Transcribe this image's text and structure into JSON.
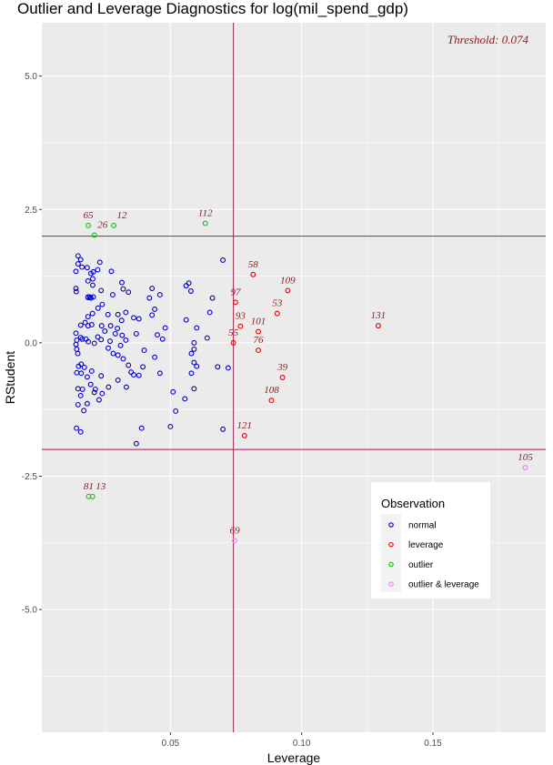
{
  "chart_data": {
    "type": "scatter",
    "title": "Outlier and Leverage Diagnostics for log(mil_spend_gdp)",
    "xlabel": "Leverage",
    "ylabel": "RStudent",
    "xlim": [
      0.001,
      0.193
    ],
    "ylim": [
      -7.3,
      6.0
    ],
    "x_ticks": [
      0.05,
      0.1,
      0.15
    ],
    "x_tick_labels": [
      "0.05",
      "0.10",
      "0.15"
    ],
    "y_ticks": [
      5.0,
      2.5,
      0.0,
      -2.5,
      -5.0
    ],
    "y_tick_labels": [
      "5.0",
      "2.5",
      "0.0",
      "-2.5",
      "-5.0"
    ],
    "grid": true,
    "threshold_leverage": 0.074,
    "threshold_label": "Threshold: 0.074",
    "rstudent_cutoffs": [
      2,
      -2
    ],
    "colors": {
      "normal": "#0000cc",
      "leverage": "#e00000",
      "outlier": "#00cc00",
      "outlier & leverage": "#ee82ee",
      "reference_line": "#a0204a",
      "label": "#8b1a1a",
      "panel": "#ebebeb",
      "grid": "#ffffff"
    },
    "legend": {
      "title": "Observation",
      "position": "bottom-right",
      "entries": [
        "normal",
        "leverage",
        "outlier",
        "outlier & leverage"
      ]
    },
    "series": [
      {
        "name": "normal",
        "points": [
          [
            0.0148,
            1.63
          ],
          [
            0.0158,
            1.56
          ],
          [
            0.0148,
            1.48
          ],
          [
            0.0163,
            1.42
          ],
          [
            0.014,
            1.34
          ],
          [
            0.0183,
            1.41
          ],
          [
            0.0197,
            1.3
          ],
          [
            0.0206,
            1.33
          ],
          [
            0.0231,
            1.51
          ],
          [
            0.0223,
            1.37
          ],
          [
            0.0275,
            1.34
          ],
          [
            0.028,
            0.9
          ],
          [
            0.0236,
            0.98
          ],
          [
            0.0204,
            1.2
          ],
          [
            0.0186,
            1.16
          ],
          [
            0.0204,
            1.08
          ],
          [
            0.0186,
            0.86
          ],
          [
            0.0141,
            0.96
          ],
          [
            0.014,
            1.02
          ],
          [
            0.0186,
            0.85
          ],
          [
            0.0206,
            0.86
          ],
          [
            0.0193,
            0.86
          ],
          [
            0.0197,
            0.84
          ],
          [
            0.024,
            0.72
          ],
          [
            0.0224,
            0.65
          ],
          [
            0.0203,
            0.55
          ],
          [
            0.0186,
            0.49
          ],
          [
            0.02,
            0.34
          ],
          [
            0.0186,
            0.32
          ],
          [
            0.0158,
            0.33
          ],
          [
            0.0175,
            0.38
          ],
          [
            0.014,
            0.18
          ],
          [
            0.0158,
            0.1
          ],
          [
            0.0178,
            0.07
          ],
          [
            0.0164,
            0.07
          ],
          [
            0.0143,
            0.05
          ],
          [
            0.014,
            -0.03
          ],
          [
            0.0143,
            -0.12
          ],
          [
            0.0147,
            -0.2
          ],
          [
            0.0187,
            0.02
          ],
          [
            0.021,
            -0.01
          ],
          [
            0.025,
            0.22
          ],
          [
            0.0236,
            0.06
          ],
          [
            0.0223,
            0.11
          ],
          [
            0.0238,
            0.32
          ],
          [
            0.0272,
            0.32
          ],
          [
            0.0262,
            0.53
          ],
          [
            0.03,
            0.53
          ],
          [
            0.0314,
            0.42
          ],
          [
            0.0298,
            0.27
          ],
          [
            0.029,
            0.17
          ],
          [
            0.027,
            0.03
          ],
          [
            0.0263,
            -0.1
          ],
          [
            0.0282,
            -0.2
          ],
          [
            0.031,
            -0.05
          ],
          [
            0.033,
            0.05
          ],
          [
            0.0316,
            0.14
          ],
          [
            0.03,
            -0.23
          ],
          [
            0.032,
            -0.3
          ],
          [
            0.034,
            -0.42
          ],
          [
            0.035,
            -0.55
          ],
          [
            0.036,
            -0.6
          ],
          [
            0.03,
            -0.7
          ],
          [
            0.0332,
            -0.83
          ],
          [
            0.0264,
            -0.83
          ],
          [
            0.024,
            -0.95
          ],
          [
            0.0228,
            -1.07
          ],
          [
            0.02,
            -0.53
          ],
          [
            0.0183,
            -0.64
          ],
          [
            0.016,
            -0.57
          ],
          [
            0.015,
            -0.44
          ],
          [
            0.016,
            -0.4
          ],
          [
            0.0172,
            -0.46
          ],
          [
            0.0143,
            -0.56
          ],
          [
            0.0165,
            -0.87
          ],
          [
            0.0148,
            -0.86
          ],
          [
            0.0158,
            -0.99
          ],
          [
            0.0183,
            -1.14
          ],
          [
            0.0148,
            -1.16
          ],
          [
            0.017,
            -1.27
          ],
          [
            0.0142,
            -1.6
          ],
          [
            0.0158,
            -1.67
          ],
          [
            0.021,
            -0.93
          ],
          [
            0.0214,
            -0.87
          ],
          [
            0.0236,
            -0.62
          ],
          [
            0.0196,
            -0.78
          ],
          [
            0.032,
            1.01
          ],
          [
            0.0315,
            1.13
          ],
          [
            0.034,
            0.95
          ],
          [
            0.038,
            0.45
          ],
          [
            0.037,
            0.17
          ],
          [
            0.036,
            0.47
          ],
          [
            0.033,
            0.57
          ],
          [
            0.042,
            0.84
          ],
          [
            0.043,
            0.52
          ],
          [
            0.04,
            -0.14
          ],
          [
            0.044,
            -0.27
          ],
          [
            0.045,
            0.15
          ],
          [
            0.047,
            0.07
          ],
          [
            0.048,
            0.28
          ],
          [
            0.044,
            0.63
          ],
          [
            0.046,
            0.9
          ],
          [
            0.043,
            1.02
          ],
          [
            0.0395,
            -0.45
          ],
          [
            0.038,
            -0.61
          ],
          [
            0.039,
            -1.6
          ],
          [
            0.037,
            -1.89
          ],
          [
            0.05,
            -1.57
          ],
          [
            0.051,
            -0.92
          ],
          [
            0.046,
            -0.57
          ],
          [
            0.052,
            -1.28
          ],
          [
            0.0555,
            -1.05
          ],
          [
            0.056,
            0.43
          ],
          [
            0.056,
            1.07
          ],
          [
            0.057,
            1.12
          ],
          [
            0.0578,
            0.97
          ],
          [
            0.06,
            0.28
          ],
          [
            0.059,
            0.0
          ],
          [
            0.059,
            -0.12
          ],
          [
            0.058,
            -0.2
          ],
          [
            0.059,
            -0.37
          ],
          [
            0.06,
            -0.44
          ],
          [
            0.058,
            -0.57
          ],
          [
            0.059,
            -0.86
          ],
          [
            0.065,
            0.57
          ],
          [
            0.066,
            0.84
          ],
          [
            0.064,
            0.09
          ],
          [
            0.068,
            -0.45
          ],
          [
            0.07,
            1.55
          ],
          [
            0.072,
            -0.47
          ],
          [
            0.07,
            -1.62
          ]
        ]
      },
      {
        "name": "leverage",
        "points": [
          {
            "id": "58",
            "x": 0.0815,
            "y": 1.28
          },
          {
            "id": "109",
            "x": 0.0947,
            "y": 0.98
          },
          {
            "id": "97",
            "x": 0.0748,
            "y": 0.76
          },
          {
            "id": "53",
            "x": 0.0907,
            "y": 0.55
          },
          {
            "id": "93",
            "x": 0.0767,
            "y": 0.31
          },
          {
            "id": "101",
            "x": 0.0835,
            "y": 0.21
          },
          {
            "id": "55",
            "x": 0.074,
            "y": 0.0
          },
          {
            "id": "76",
            "x": 0.0835,
            "y": -0.14
          },
          {
            "id": "39",
            "x": 0.0927,
            "y": -0.65
          },
          {
            "id": "108",
            "x": 0.0885,
            "y": -1.08
          },
          {
            "id": "121",
            "x": 0.0782,
            "y": -1.74
          },
          {
            "id": "131",
            "x": 0.1292,
            "y": 0.32
          }
        ]
      },
      {
        "name": "outlier",
        "points": [
          {
            "id": "65",
            "x": 0.0187,
            "y": 2.2
          },
          {
            "id": "26",
            "x": 0.021,
            "y": 2.02
          },
          {
            "id": "12",
            "x": 0.0284,
            "y": 2.2
          },
          {
            "id": "112",
            "x": 0.0633,
            "y": 2.24
          },
          {
            "id": "81",
            "x": 0.0188,
            "y": -2.88
          },
          {
            "id": "13",
            "x": 0.0203,
            "y": -2.88
          }
        ]
      },
      {
        "name": "outlier & leverage",
        "points": [
          {
            "id": "105",
            "x": 0.1852,
            "y": -2.34
          },
          {
            "id": "69",
            "x": 0.0745,
            "y": -3.71
          }
        ]
      }
    ]
  }
}
